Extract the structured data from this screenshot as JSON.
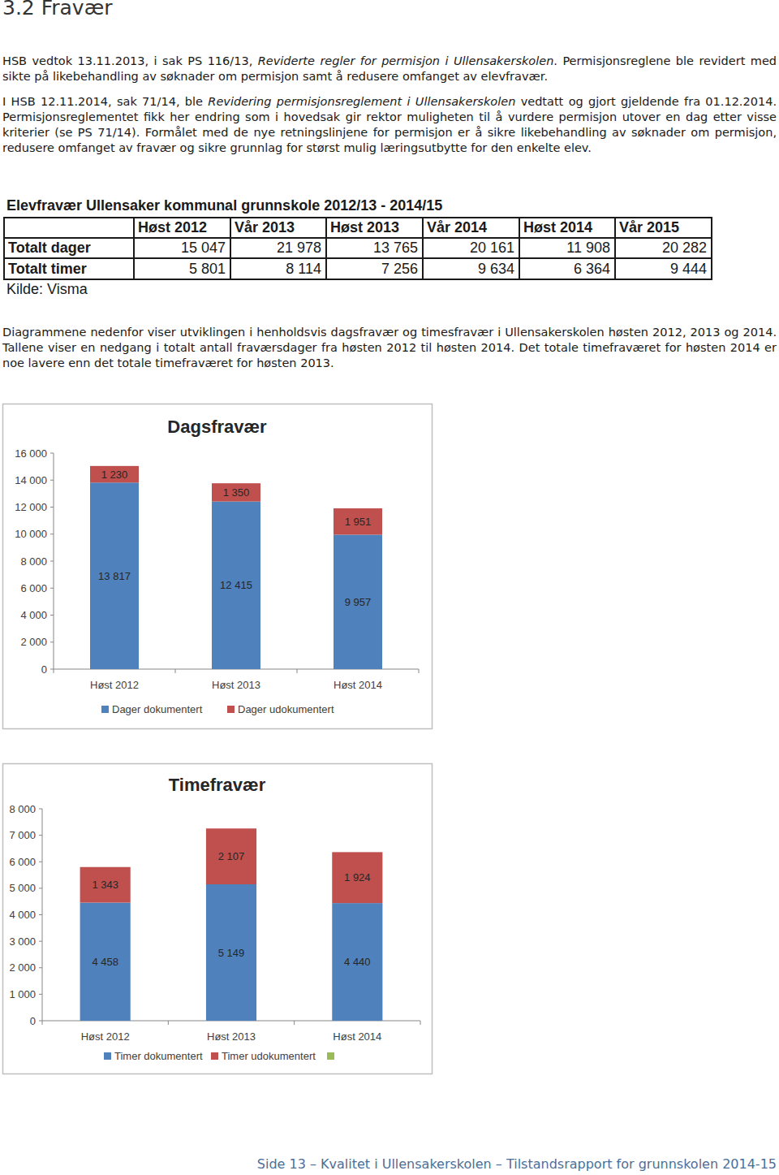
{
  "heading": "3.2 Fravær",
  "paragraphs": [
    [
      {
        "text": "HSB vedtok 13.11.2013, i sak PS 116/13, ",
        "italic": false
      },
      {
        "text": "Reviderte regler for permisjon i Ullensakerskolen",
        "italic": true
      },
      {
        "text": ". Permisjonsreglene ble revidert med sikte på likebehandling av søknader om permisjon samt å redusere omfanget av elevfravær.",
        "italic": false
      }
    ],
    [
      {
        "text": "I HSB 12.11.2014, sak 71/14, ble ",
        "italic": false
      },
      {
        "text": "Revidering permisjonsreglement i Ullensakerskolen",
        "italic": true
      },
      {
        "text": " vedtatt og gjort gjeldende fra 01.12.2014. Permisjonsreglementet fikk her endring som i hovedsak gir rektor muligheten til å vurdere permisjon utover en dag etter visse kriterier (se PS 71/14). Formålet med de nye retningslinjene for permisjon er å sikre likebehandling av søknader om permisjon, redusere omfanget av fravær og sikre grunnlag for størst mulig læringsutbytte for den enkelte elev.",
        "italic": false
      }
    ]
  ],
  "table": {
    "title": "Elevfravær Ullensaker kommunal grunnskole 2012/13 - 2014/15",
    "columns": [
      "Høst 2012",
      "Vår 2013",
      "Høst 2013",
      "Vår 2014",
      "Høst 2014",
      "Vår 2015"
    ],
    "rows": [
      {
        "label": "Totalt dager",
        "cells": [
          "15 047",
          "21 978",
          "13 765",
          "20 161",
          "11 908",
          "20 282"
        ]
      },
      {
        "label": "Totalt timer",
        "cells": [
          "5 801",
          "8 114",
          "7 256",
          "9 634",
          "6 364",
          "9 444"
        ]
      }
    ],
    "source": "Kilde: Visma"
  },
  "chart_intro": [
    {
      "text": "Diagrammene nedenfor viser utviklingen i henholdsvis dagsfravær og timesfravær i Ullensakerskolen høsten 2012, 2013 og 2014. Tallene viser en nedgang i totalt antall fraværsdager fra høsten 2012 til høsten 2014. Det totale timefraværet for høsten 2014 er noe lavere enn det totale timefraværet for høsten 2013.",
      "italic": false
    }
  ],
  "chart_data": [
    {
      "type": "bar",
      "stacked": true,
      "title": "Dagsfravær",
      "categories": [
        "Høst 2012",
        "Høst 2013",
        "Høst 2014"
      ],
      "series": [
        {
          "name": "Dager dokumentert",
          "color": "#4f81bd",
          "values": [
            13817,
            12415,
            9957
          ],
          "value_labels": [
            "13 817",
            "12 415",
            "9 957"
          ]
        },
        {
          "name": "Dager udokumentert",
          "color": "#c0504d",
          "values": [
            1230,
            1350,
            1951
          ],
          "value_labels": [
            "1 230",
            "1 350",
            "1 951"
          ]
        }
      ],
      "ylim": [
        0,
        16000
      ],
      "yticks": [
        0,
        {
          "value": 2000,
          "label": "2 000"
        },
        {
          "value": 4000,
          "label": "4 000"
        },
        {
          "value": 6000,
          "label": "6 000"
        },
        {
          "value": 8000,
          "label": "8 000"
        },
        {
          "value": 10000,
          "label": "10 000"
        },
        {
          "value": 12000,
          "label": "12 000"
        },
        {
          "value": 14000,
          "label": "14 000"
        },
        {
          "value": 16000,
          "label": "16 000"
        }
      ],
      "grid": false,
      "data_labels": true,
      "legend": "bottom"
    },
    {
      "type": "bar",
      "stacked": true,
      "title": "Timefravær",
      "categories": [
        "Høst 2012",
        "Høst 2013",
        "Høst 2014"
      ],
      "series": [
        {
          "name": "Timer dokumentert",
          "color": "#4f81bd",
          "values": [
            4458,
            5149,
            4440
          ],
          "value_labels": [
            "4 458",
            "5 149",
            "4 440"
          ]
        },
        {
          "name": "Timer udokumentert",
          "color": "#c0504d",
          "values": [
            1343,
            2107,
            1924
          ],
          "value_labels": [
            "1 343",
            "2 107",
            "1 924"
          ]
        },
        {
          "name": null,
          "color": "#9bbb59",
          "values": [
            null,
            null,
            null
          ]
        }
      ],
      "ylim": [
        0,
        8000
      ],
      "yticks": [
        0,
        {
          "value": 1000,
          "label": "1 000"
        },
        {
          "value": 2000,
          "label": "2 000"
        },
        {
          "value": 3000,
          "label": "3 000"
        },
        {
          "value": 4000,
          "label": "4 000"
        },
        {
          "value": 5000,
          "label": "5 000"
        },
        {
          "value": 6000,
          "label": "6 000"
        },
        {
          "value": 7000,
          "label": "7 000"
        },
        {
          "value": 8000,
          "label": "8 000"
        }
      ],
      "grid": false,
      "data_labels": true,
      "legend": "bottom"
    }
  ],
  "footer": "Side 13 – Kvalitet i Ullensakerskolen – Tilstandsrapport for grunnskolen 2014-15"
}
